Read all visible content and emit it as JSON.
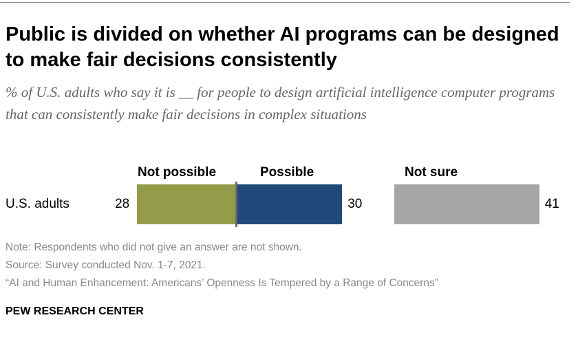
{
  "title": "Public is divided on whether AI programs can be designed to make fair decisions consistently",
  "subtitle": "% of U.S. adults who say it is __ for people to design artificial intelligence computer programs that can consistently make fair decisions in complex situations",
  "chart_data": {
    "type": "bar",
    "orientation": "horizontal-stacked",
    "categories": [
      "U.S. adults"
    ],
    "series": [
      {
        "name": "Not possible",
        "values": [
          28
        ],
        "color": "#949c4a"
      },
      {
        "name": "Possible",
        "values": [
          30
        ],
        "color": "#214a7a"
      },
      {
        "name": "Not sure",
        "values": [
          41
        ],
        "color": "#a5a5a5"
      }
    ]
  },
  "notes": {
    "note": "Note: Respondents who did not give an answer are not shown.",
    "source": "Source: Survey conducted Nov. 1-7, 2021.",
    "report": "“AI and Human Enhancement: Americans’ Openness Is Tempered by a Range of Concerns”"
  },
  "brand": "PEW RESEARCH CENTER"
}
